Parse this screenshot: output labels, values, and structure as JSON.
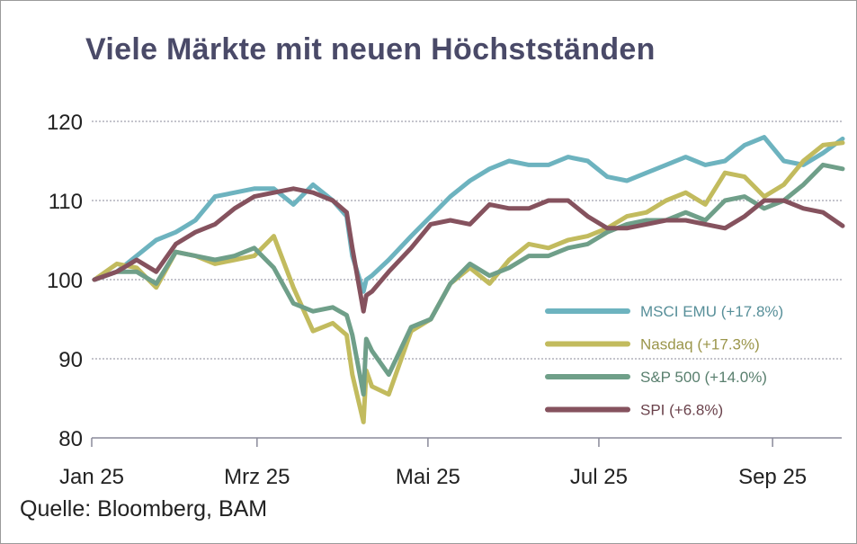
{
  "chart_data": {
    "type": "line",
    "title": "Viele Märkte mit neuen Höchstständen",
    "source": "Quelle: Bloomberg, BAM",
    "ylim": [
      80,
      120
    ],
    "yticks": [
      80,
      90,
      100,
      110,
      120
    ],
    "ytick_labels": [
      "80",
      "90",
      "100",
      "110",
      "120"
    ],
    "xlim": [
      "2025-01-01",
      "2025-09-30"
    ],
    "xticks": [
      "2025-01-01",
      "2025-03-01",
      "2025-05-01",
      "2025-07-01",
      "2025-09-01"
    ],
    "xtick_labels": [
      "Jan 25",
      "Mrz 25",
      "Mai 25",
      "Jul 25",
      "Sep 25"
    ],
    "grid": "horizontal dotted",
    "legend_position": "bottom-right",
    "x": [
      "2025-01-02",
      "2025-01-10",
      "2025-01-17",
      "2025-01-24",
      "2025-01-31",
      "2025-02-07",
      "2025-02-14",
      "2025-02-21",
      "2025-02-28",
      "2025-03-07",
      "2025-03-14",
      "2025-03-21",
      "2025-03-28",
      "2025-04-02",
      "2025-04-04",
      "2025-04-08",
      "2025-04-09",
      "2025-04-11",
      "2025-04-17",
      "2025-04-25",
      "2025-05-02",
      "2025-05-09",
      "2025-05-16",
      "2025-05-23",
      "2025-05-30",
      "2025-06-06",
      "2025-06-13",
      "2025-06-20",
      "2025-06-27",
      "2025-07-04",
      "2025-07-11",
      "2025-07-18",
      "2025-07-25",
      "2025-08-01",
      "2025-08-08",
      "2025-08-15",
      "2025-08-22",
      "2025-08-29",
      "2025-09-05",
      "2025-09-12",
      "2025-09-19",
      "2025-09-26"
    ],
    "series": [
      {
        "name": "MSCI EMU (+17.8%)",
        "color": "#6db3bf",
        "values": [
          100,
          101,
          103,
          105,
          106,
          107.5,
          110.5,
          111,
          111.5,
          111.5,
          109.5,
          112,
          110,
          108,
          103,
          98.5,
          100,
          100.5,
          102.5,
          105.5,
          108,
          110.5,
          112.5,
          114,
          115,
          114.5,
          114.5,
          115.5,
          115,
          113,
          112.5,
          113.5,
          114.5,
          115.5,
          114.5,
          115,
          117,
          118,
          115,
          114.5,
          116,
          117.8
        ]
      },
      {
        "name": "Nasdaq (+17.3%)",
        "color": "#c2bb5e",
        "values": [
          100,
          102,
          101.5,
          99,
          103.5,
          103,
          102,
          102.5,
          103,
          105.5,
          99,
          93.5,
          94.5,
          93,
          88,
          82,
          88.5,
          86.5,
          85.5,
          93.5,
          95,
          99.5,
          101.5,
          99.5,
          102.5,
          104.5,
          104,
          105,
          105.5,
          106.5,
          108,
          108.5,
          110,
          111,
          109.5,
          113.5,
          113,
          110.5,
          112,
          115,
          117,
          117.3
        ]
      },
      {
        "name": "S&P 500 (+14.0%)",
        "color": "#6f9f89",
        "values": [
          100,
          101,
          101,
          99.5,
          103.5,
          103,
          102.5,
          103,
          104,
          101.5,
          97,
          96,
          96.5,
          95.5,
          93,
          85.5,
          92.5,
          91,
          88,
          94,
          95,
          99.5,
          102,
          100.5,
          101.5,
          103,
          103,
          104,
          104.5,
          106,
          107,
          107.5,
          107.5,
          108.5,
          107.5,
          110,
          110.5,
          109,
          110,
          112,
          114.5,
          114
        ]
      },
      {
        "name": "SPI (+6.8%)",
        "color": "#85525e",
        "values": [
          100,
          101,
          102.5,
          101,
          104.5,
          106,
          107,
          109,
          110.5,
          111,
          111.5,
          111,
          110,
          108.5,
          104,
          96,
          98,
          98.5,
          101,
          104,
          107,
          107.5,
          107,
          109.5,
          109,
          109,
          110,
          110,
          108,
          106.5,
          106.5,
          107,
          107.5,
          107.5,
          107,
          106.5,
          108,
          110,
          110,
          109,
          108.5,
          106.8
        ]
      }
    ]
  }
}
